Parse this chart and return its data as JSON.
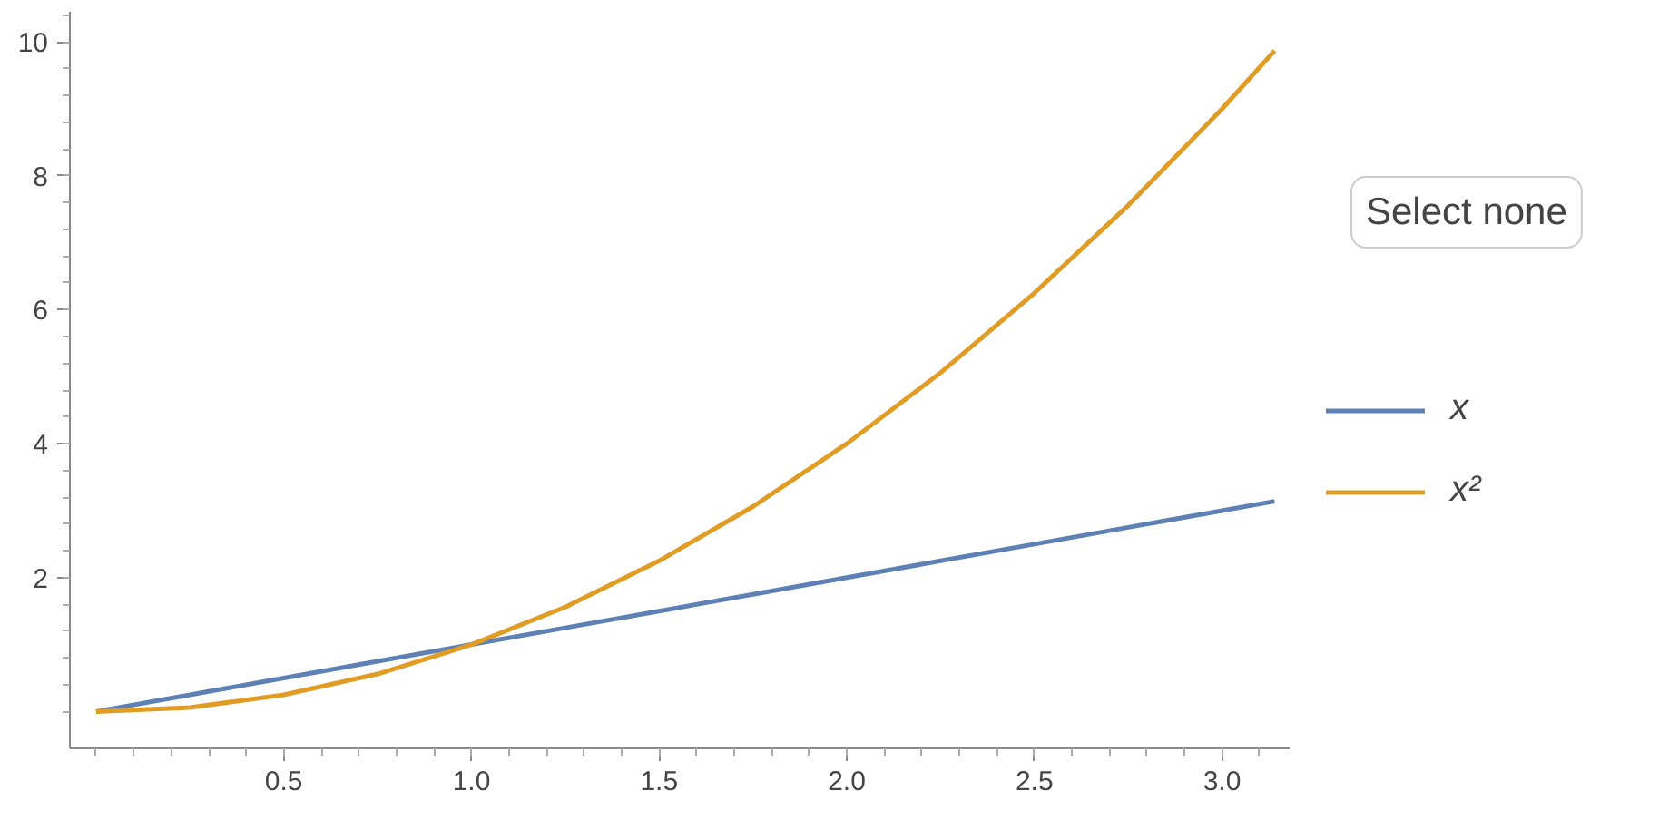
{
  "chart_data": {
    "type": "line",
    "x": [
      0,
      0.25,
      0.5,
      0.75,
      1,
      1.25,
      1.5,
      1.75,
      2,
      2.25,
      2.5,
      2.75,
      3,
      3.14
    ],
    "series": [
      {
        "name": "x",
        "color": "#5e81b5",
        "values": [
          0,
          0.25,
          0.5,
          0.75,
          1,
          1.25,
          1.5,
          1.75,
          2,
          2.25,
          2.5,
          2.75,
          3,
          3.14
        ]
      },
      {
        "name": "x²",
        "color": "#e19c24",
        "values": [
          0,
          0.06,
          0.25,
          0.56,
          1,
          1.56,
          2.25,
          3.06,
          4,
          5.06,
          6.25,
          7.56,
          9,
          9.87
        ]
      }
    ],
    "xlim": [
      -0.07,
      3.18
    ],
    "ylim": [
      -0.55,
      10.45
    ],
    "xticks": [
      {
        "value": 0.5,
        "label": "0.5"
      },
      {
        "value": 1,
        "label": "1.0"
      },
      {
        "value": 1.5,
        "label": "1.5"
      },
      {
        "value": 2,
        "label": "2.0"
      },
      {
        "value": 2.5,
        "label": "2.5"
      },
      {
        "value": 3,
        "label": "3.0"
      }
    ],
    "yticks": [
      2,
      4,
      6,
      8,
      10
    ],
    "grid": false,
    "legend": "right",
    "line_style": "solid",
    "marker": "none",
    "annotations": [
      "Select none"
    ]
  }
}
